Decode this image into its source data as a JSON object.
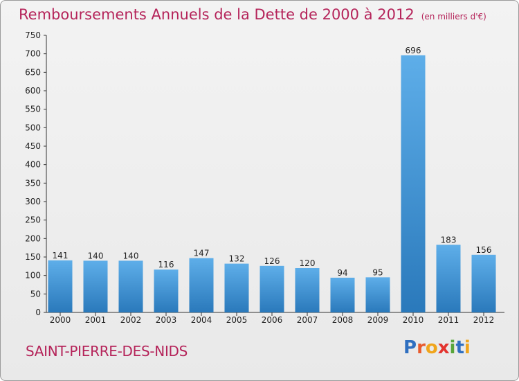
{
  "title": "Remboursements Annuels de la Dette de 2000 à 2012",
  "unit": "(en milliers d'€)",
  "commune": "SAINT-PIERRE-DES-NIDS",
  "brand": "Proxiti",
  "colors": {
    "title": "#b5245a",
    "bar_light": "#5aa9e6",
    "bar_dark": "#2c7ec0",
    "background": "#eeeeee"
  },
  "chart_data": {
    "type": "bar",
    "title": "Remboursements Annuels de la Dette de 2000 à 2012",
    "xlabel": "",
    "ylabel": "",
    "categories": [
      "2000",
      "2001",
      "2002",
      "2003",
      "2004",
      "2005",
      "2006",
      "2007",
      "2008",
      "2009",
      "2010",
      "2011",
      "2012"
    ],
    "values": [
      141,
      140,
      140,
      116,
      147,
      132,
      126,
      120,
      94,
      95,
      696,
      183,
      156
    ],
    "ylim": [
      0,
      750
    ],
    "yticks": [
      0,
      50,
      100,
      150,
      200,
      250,
      300,
      350,
      400,
      450,
      500,
      550,
      600,
      650,
      700,
      750
    ],
    "grid": false,
    "data_labels": true
  }
}
